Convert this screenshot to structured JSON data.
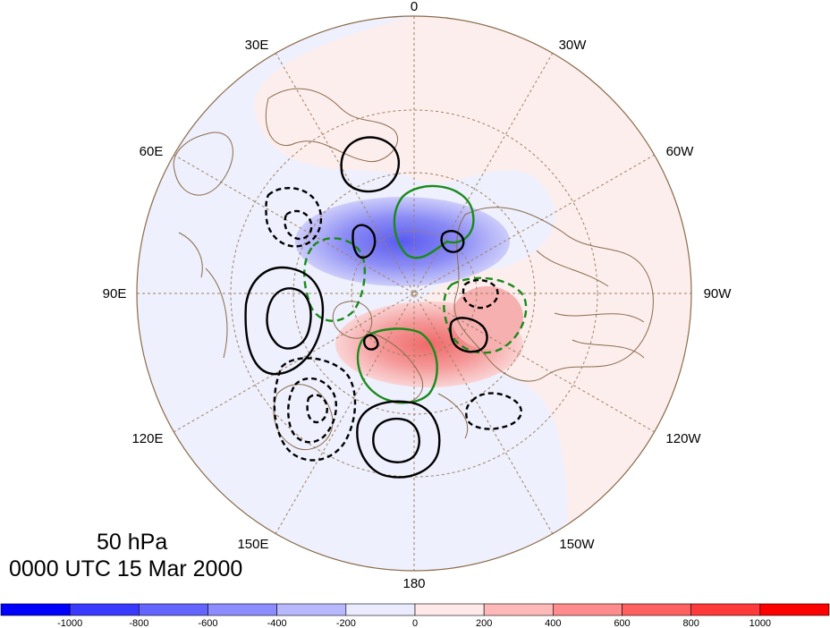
{
  "map": {
    "level": "50 hPa",
    "time": "0000 UTC 15 Mar 2000",
    "longitude_labels": [
      "0",
      "30W",
      "60W",
      "90W",
      "120W",
      "150W",
      "180",
      "150E",
      "120E",
      "90E",
      "60E",
      "30E"
    ],
    "projection": "north polar stereographic",
    "colors": {
      "negative_anomaly": "#5a5af0",
      "positive_anomaly": "#f06060",
      "positive_contour": "#000000",
      "negative_contour": "#000000",
      "green_contour": "#1a8a1a",
      "coastline": "#8b6b4a",
      "gridline": "#a08060"
    }
  },
  "colorbar": {
    "tick_labels": [
      "-1000",
      "-800",
      "-600",
      "-400",
      "-200",
      "0",
      "200",
      "400",
      "600",
      "800",
      "1000"
    ],
    "colors": [
      "#0000ff",
      "#3a3aff",
      "#6464ff",
      "#8c8cff",
      "#b8b8ff",
      "#ebebff",
      "#ffe8e8",
      "#ffb8b8",
      "#ff8c8c",
      "#ff6060",
      "#ff3a3a",
      "#ff0000"
    ]
  }
}
